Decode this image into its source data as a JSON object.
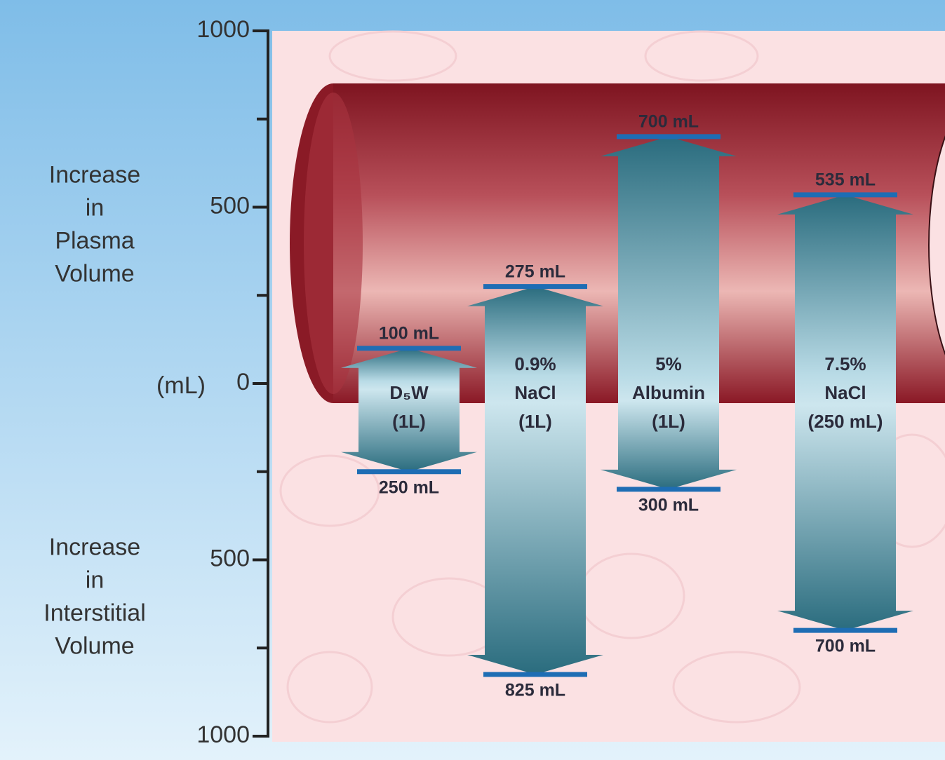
{
  "chart_data": {
    "type": "diverging-arrow",
    "y_label_top": [
      "Increase",
      "in",
      "Plasma",
      "Volume"
    ],
    "y_label_bottom": [
      "Increase",
      "in",
      "Interstitial",
      "Volume"
    ],
    "y_unit": "(mL)",
    "categories": [
      [
        "D₅W",
        "(1L)"
      ],
      [
        "0.9%",
        "NaCl",
        "(1L)"
      ],
      [
        "5%",
        "Albumin",
        "(1L)"
      ],
      [
        "7.5%",
        "NaCl",
        "(250 mL)"
      ]
    ],
    "series": [
      {
        "name": "Plasma",
        "color": "#1e6db4",
        "values": [
          100,
          275,
          700,
          535
        ],
        "value_labels": [
          "100 mL",
          "275 mL",
          "700 mL",
          "535 mL"
        ]
      },
      {
        "name": "Interstitial",
        "color": "#1e6db4",
        "values": [
          -250,
          -825,
          -300,
          -700
        ],
        "value_labels": [
          "250 mL",
          "825 mL",
          "300 mL",
          "700 mL"
        ]
      }
    ],
    "arrow_color": "#2a6c7e",
    "ylim": [
      -1000,
      1000
    ],
    "yticks": [
      1000,
      500,
      0,
      {
        "value": -500,
        "label": "500"
      },
      {
        "value": -1000,
        "label": "1000"
      }
    ],
    "minor_yticks": [
      750,
      250,
      -250,
      -750
    ]
  }
}
